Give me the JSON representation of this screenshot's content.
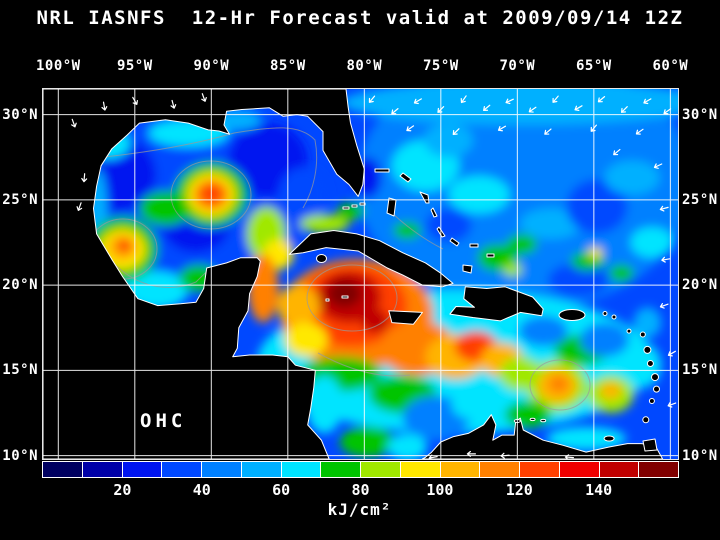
{
  "title": "NRL IASNFS  12-Hr Forecast valid at 2009/09/14 12Z",
  "map": {
    "field_label": "OHC",
    "extent": {
      "lon_west": 101,
      "lon_east": 59.5,
      "lat_north": 31.5,
      "lat_south": 9.8
    },
    "lon_ticks": [
      {
        "value": 100,
        "label": "100°W"
      },
      {
        "value": 95,
        "label": "95°W"
      },
      {
        "value": 90,
        "label": "90°W"
      },
      {
        "value": 85,
        "label": "85°W"
      },
      {
        "value": 80,
        "label": "80°W"
      },
      {
        "value": 75,
        "label": "75°W"
      },
      {
        "value": 70,
        "label": "70°W"
      },
      {
        "value": 65,
        "label": "65°W"
      },
      {
        "value": 60,
        "label": "60°W"
      }
    ],
    "lat_ticks": [
      {
        "value": 30,
        "label": "30°N"
      },
      {
        "value": 25,
        "label": "25°N"
      },
      {
        "value": 20,
        "label": "20°N"
      },
      {
        "value": 15,
        "label": "15°N"
      },
      {
        "value": 10,
        "label": "10°N"
      }
    ]
  },
  "colorbar": {
    "min": 0,
    "max": 160,
    "tick_values": [
      20,
      40,
      60,
      80,
      100,
      120,
      140
    ],
    "tick_labels": [
      "20",
      "40",
      "60",
      "80",
      "100",
      "120",
      "140"
    ],
    "units": "kJ/cm²",
    "colors": [
      "#000060",
      "#0000a8",
      "#0014f0",
      "#0048ff",
      "#0080ff",
      "#00b0ff",
      "#00e4ff",
      "#00c400",
      "#a0e800",
      "#ffe800",
      "#ffb400",
      "#ff8000",
      "#ff4000",
      "#f00000",
      "#c00000",
      "#800000"
    ]
  },
  "chart_data": {
    "type": "heatmap",
    "title": "NRL IASNFS 12-Hr Forecast valid at 2009/09/14 12Z",
    "variable": "OHC (Ocean Heat Content)",
    "units": "kJ/cm²",
    "colorbar_range": [
      0,
      160
    ],
    "colorbar_tick_values": [
      20,
      40,
      60,
      80,
      100,
      120,
      140
    ],
    "lon_extent_degW": [
      101,
      59.5
    ],
    "lat_extent_degN": [
      9.8,
      31.5
    ],
    "region": "Gulf of Mexico / Caribbean Sea / Western North Atlantic",
    "background_value": 38,
    "feature_format": [
      "lon_degW",
      "lat_degN",
      "rx_deg",
      "ry_deg",
      "value_kJ_cm2"
    ],
    "features": [
      [
        69.5,
        26,
        11,
        7.5,
        45
      ],
      [
        92,
        25,
        8.5,
        5.5,
        35
      ],
      [
        74,
        15.5,
        13,
        4.2,
        62
      ],
      [
        96.2,
        26.5,
        2.6,
        2.2,
        22
      ],
      [
        86.3,
        27.3,
        2.6,
        2.2,
        25
      ],
      [
        91,
        23.5,
        2.2,
        1.6,
        28
      ],
      [
        84,
        25.3,
        1.6,
        1.6,
        30
      ],
      [
        79.8,
        26.3,
        0.9,
        1.2,
        28
      ],
      [
        96.8,
        28.3,
        1.5,
        0.9,
        60
      ],
      [
        97.4,
        24,
        0.6,
        2.8,
        55
      ],
      [
        91.5,
        28.9,
        2.6,
        0.8,
        65
      ],
      [
        88.3,
        29.7,
        1.6,
        0.6,
        58
      ],
      [
        93.6,
        19.7,
        2.1,
        1.1,
        60
      ],
      [
        90.8,
        20.4,
        1.3,
        0.8,
        75
      ],
      [
        95.8,
        22.1,
        2.3,
        1.9,
        70
      ],
      [
        95.8,
        22.1,
        1.5,
        1.2,
        90
      ],
      [
        95.8,
        22.2,
        1,
        0.8,
        105
      ],
      [
        95.7,
        22.3,
        0.5,
        0.4,
        120
      ],
      [
        93,
        24.5,
        1.7,
        1,
        70
      ],
      [
        90,
        25.3,
        2.4,
        1.9,
        75
      ],
      [
        90,
        25.3,
        1.6,
        1.3,
        95
      ],
      [
        90,
        25.3,
        1.15,
        0.9,
        110
      ],
      [
        90,
        25.35,
        0.7,
        0.55,
        125
      ],
      [
        86.4,
        23,
        1.3,
        1.6,
        80
      ],
      [
        85.6,
        21.8,
        1,
        0.9,
        95
      ],
      [
        82.6,
        23.6,
        1.6,
        0.55,
        80
      ],
      [
        80.9,
        24.3,
        0.9,
        0.5,
        72
      ],
      [
        80.5,
        18.3,
        5,
        3.2,
        110
      ],
      [
        80.8,
        18.8,
        3.6,
        2.4,
        125
      ],
      [
        86.6,
        19.8,
        1,
        2,
        115
      ],
      [
        81,
        19.3,
        2.1,
        1.5,
        140
      ],
      [
        81.3,
        19.5,
        1.1,
        0.8,
        152
      ],
      [
        79.3,
        17.9,
        0.9,
        0.7,
        148
      ],
      [
        84.3,
        18.8,
        1.4,
        1.2,
        100
      ],
      [
        83.8,
        16.8,
        1.4,
        1,
        90
      ],
      [
        81.5,
        14.8,
        2.6,
        1,
        75
      ],
      [
        82.6,
        13,
        1.2,
        1.7,
        60
      ],
      [
        76.5,
        16.3,
        2.5,
        1.6,
        115
      ],
      [
        74,
        15.8,
        2,
        1.3,
        105
      ],
      [
        72.7,
        16.4,
        1.4,
        0.9,
        120
      ],
      [
        71,
        15.6,
        1.4,
        1,
        100
      ],
      [
        69.8,
        14.8,
        1.4,
        1,
        88
      ],
      [
        77.5,
        13.6,
        2.2,
        1.1,
        72
      ],
      [
        75.3,
        12.2,
        2.2,
        1.3,
        45
      ],
      [
        72.8,
        13,
        1.5,
        0.9,
        60
      ],
      [
        79.8,
        10.8,
        1.8,
        0.9,
        72
      ],
      [
        77.2,
        10.5,
        1.3,
        0.8,
        62
      ],
      [
        67.4,
        14.1,
        2,
        1.5,
        88
      ],
      [
        67.4,
        14.1,
        1.3,
        1,
        105
      ],
      [
        67.3,
        14.2,
        0.65,
        0.5,
        118
      ],
      [
        63.9,
        13.6,
        1.5,
        1.1,
        85
      ],
      [
        63.9,
        13.8,
        0.7,
        0.5,
        100
      ],
      [
        65.8,
        16.2,
        1.8,
        0.9,
        70
      ],
      [
        61.8,
        15.3,
        1.2,
        1.3,
        65
      ],
      [
        69.3,
        12.4,
        1.5,
        0.8,
        75
      ],
      [
        65.5,
        11,
        2.6,
        0.7,
        60
      ],
      [
        68.3,
        17.3,
        1.6,
        0.9,
        42
      ],
      [
        64.3,
        16.8,
        1.6,
        1,
        45
      ],
      [
        76,
        27,
        2.2,
        1.5,
        62
      ],
      [
        72.5,
        25.3,
        2,
        1.1,
        60
      ],
      [
        74.5,
        28.5,
        1.6,
        1,
        55
      ],
      [
        67.8,
        23.6,
        2,
        0.9,
        58
      ],
      [
        74.5,
        23.5,
        1.5,
        1,
        35
      ],
      [
        66,
        20.3,
        2,
        1,
        30
      ],
      [
        64.8,
        24.6,
        2,
        1.6,
        33
      ],
      [
        62.5,
        26.3,
        1.8,
        1,
        58
      ],
      [
        61.2,
        22.5,
        1.4,
        0.9,
        60
      ],
      [
        71.3,
        21.6,
        1.3,
        0.8,
        75
      ],
      [
        69.7,
        22.4,
        1,
        0.6,
        72
      ],
      [
        70.3,
        20.9,
        0.6,
        0.4,
        85
      ],
      [
        65.4,
        21.4,
        1.1,
        0.55,
        75
      ],
      [
        64.9,
        21.9,
        0.45,
        0.3,
        95
      ],
      [
        63.2,
        20.7,
        0.8,
        0.5,
        70
      ],
      [
        77.2,
        23.2,
        0.9,
        0.5,
        72
      ],
      [
        61.5,
        17.8,
        0.9,
        0.9,
        55
      ],
      [
        69.5,
        30.7,
        12,
        1.3,
        52
      ]
    ],
    "arrow_format": [
      "lon_degW",
      "lat_degN",
      "direction_deg_cw_from_east"
    ],
    "arrows": [
      [
        79.5,
        30.9,
        130
      ],
      [
        78,
        30.2,
        140
      ],
      [
        76.5,
        30.8,
        150
      ],
      [
        75,
        30.3,
        135
      ],
      [
        73.5,
        30.9,
        125
      ],
      [
        72,
        30.4,
        140
      ],
      [
        70.5,
        30.8,
        155
      ],
      [
        69,
        30.3,
        145
      ],
      [
        67.5,
        30.9,
        130
      ],
      [
        66,
        30.4,
        150
      ],
      [
        64.5,
        30.9,
        140
      ],
      [
        63,
        30.3,
        135
      ],
      [
        61.5,
        30.8,
        150
      ],
      [
        60.2,
        30.2,
        145
      ],
      [
        77,
        29.2,
        145
      ],
      [
        74,
        29,
        135
      ],
      [
        71,
        29.2,
        150
      ],
      [
        68,
        29,
        140
      ],
      [
        65,
        29.2,
        130
      ],
      [
        62,
        29,
        145
      ],
      [
        63.5,
        27.8,
        140
      ],
      [
        60.8,
        27,
        155
      ],
      [
        60.4,
        24.5,
        165
      ],
      [
        60.3,
        21.5,
        170
      ],
      [
        60.4,
        18.8,
        160
      ],
      [
        99,
        29.5,
        70
      ],
      [
        97,
        30.5,
        80
      ],
      [
        95,
        30.8,
        60
      ],
      [
        92.5,
        30.6,
        75
      ],
      [
        90.5,
        31,
        70
      ],
      [
        98.3,
        26.3,
        95
      ],
      [
        98.6,
        24.6,
        110
      ],
      [
        75.5,
        9.9,
        170
      ],
      [
        73,
        10.1,
        180
      ],
      [
        70.8,
        10,
        175
      ],
      [
        66.6,
        9.9,
        185
      ],
      [
        59.9,
        13,
        160
      ],
      [
        59.9,
        16,
        150
      ]
    ]
  }
}
